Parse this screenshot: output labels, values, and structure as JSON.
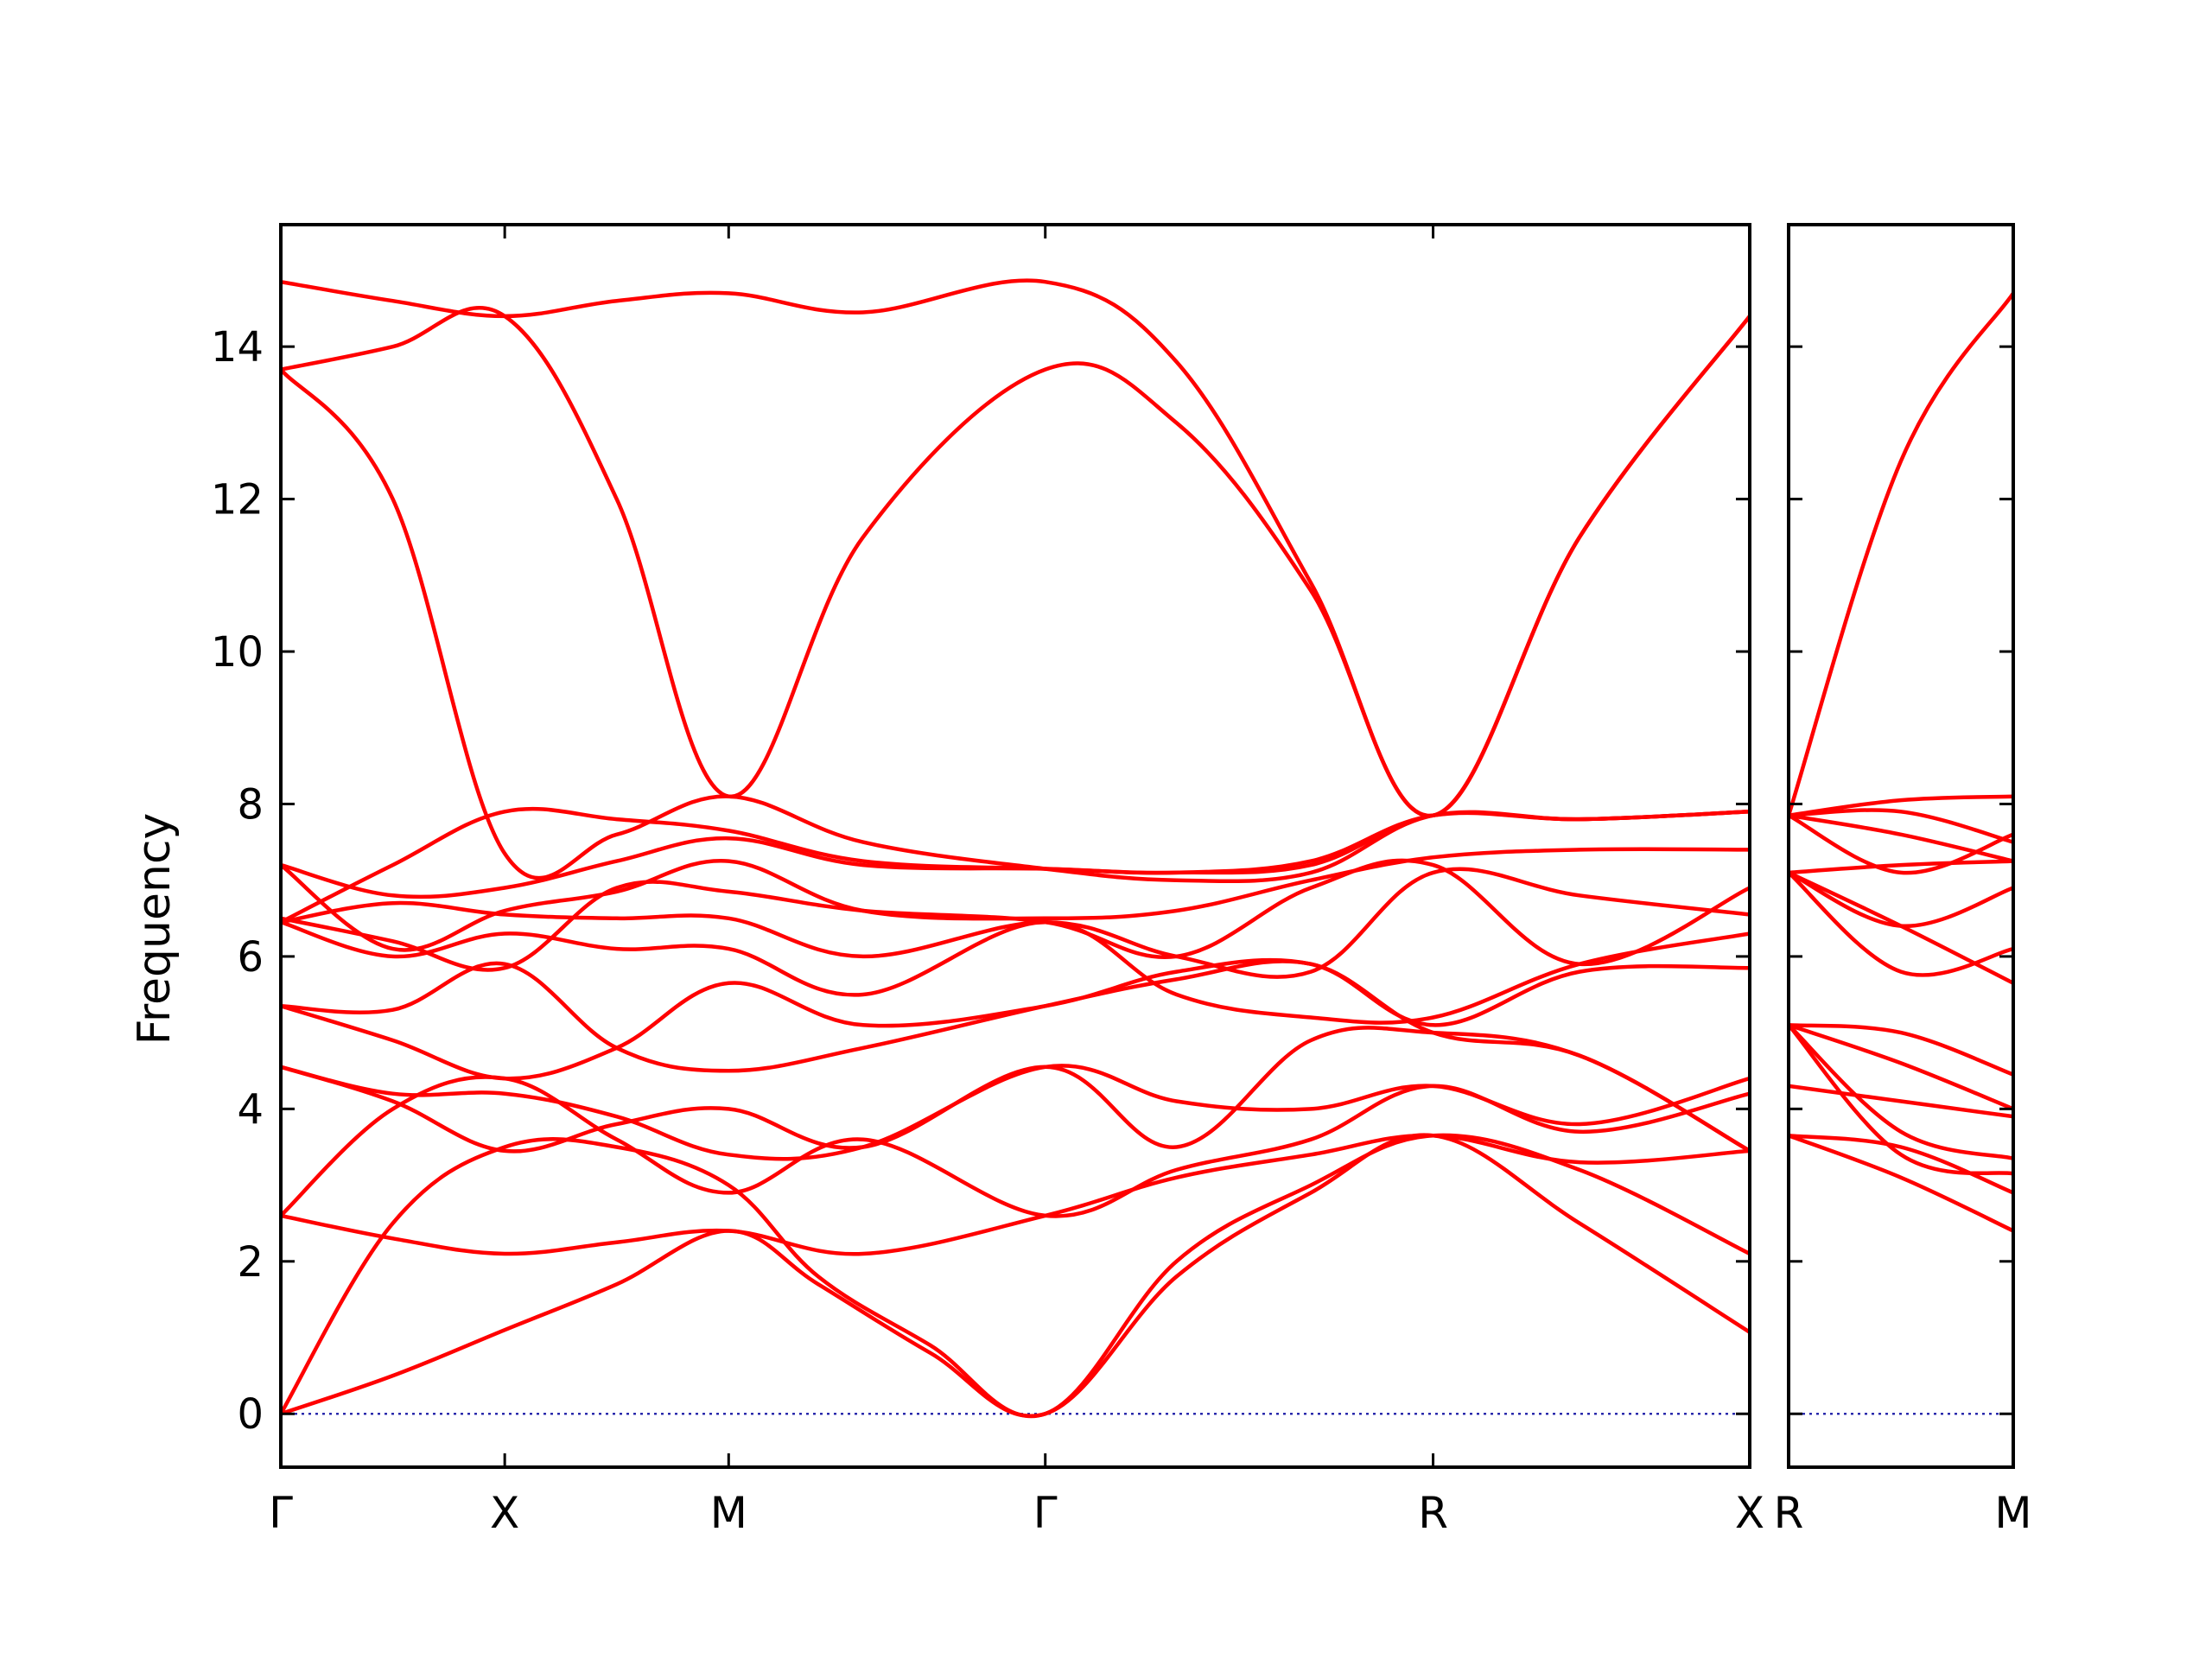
{
  "chart_data": {
    "type": "line",
    "title": "",
    "xlabel": "",
    "ylabel": "Frequency",
    "ylim": [
      -0.7,
      15.6
    ],
    "yticks": [
      0,
      2,
      4,
      6,
      8,
      10,
      12,
      14
    ],
    "grid": false,
    "colors": {
      "band": "#ff0000",
      "zero_line": "#1a1aa6",
      "axes": "#000000"
    },
    "panels": [
      {
        "name": "panel-1",
        "xticks": [
          {
            "label": "Γ",
            "x": 0
          },
          {
            "label": "X",
            "x": 0.5
          },
          {
            "label": "M",
            "x": 1.0
          },
          {
            "label": "Γ",
            "x": 1.707
          },
          {
            "label": "R",
            "x": 2.573
          },
          {
            "label": "X",
            "x": 3.28
          }
        ],
        "series": [
          {
            "x": [
              0,
              0.25,
              0.5,
              0.75,
              1.0,
              1.2,
              1.45,
              1.707,
              2.0,
              2.3,
              2.573,
              2.9,
              3.28
            ],
            "values": [
              0,
              0.5,
              1.1,
              1.7,
              2.4,
              1.7,
              0.8,
              0,
              1.8,
              2.9,
              3.65,
              2.5,
              1.07
            ]
          },
          {
            "x": [
              0,
              0.25,
              0.5,
              0.75,
              1.0,
              1.2,
              1.45,
              1.707,
              2.0,
              2.3,
              2.573,
              2.9,
              3.28
            ],
            "values": [
              0,
              2.5,
              3.5,
              3.5,
              3.0,
              1.8,
              0.9,
              0,
              2.0,
              3.0,
              3.65,
              3.2,
              2.1
            ]
          },
          {
            "x": [
              0,
              0.25,
              0.5,
              0.75,
              1.0,
              1.3,
              1.707,
              2.0,
              2.3,
              2.573,
              2.9,
              3.28
            ],
            "values": [
              2.6,
              2.3,
              2.1,
              2.25,
              2.4,
              2.1,
              2.6,
              3.1,
              3.4,
              3.65,
              3.3,
              3.45
            ]
          },
          {
            "x": [
              0,
              0.25,
              0.5,
              0.75,
              1.0,
              1.3,
              1.707,
              2.0,
              2.3,
              2.573,
              2.9,
              3.28
            ],
            "values": [
              2.6,
              4.0,
              4.4,
              3.6,
              2.9,
              3.6,
              2.6,
              3.2,
              3.6,
              4.3,
              3.7,
              4.2
            ]
          },
          {
            "x": [
              0,
              0.25,
              0.5,
              0.75,
              1.0,
              1.3,
              1.707,
              2.0,
              2.3,
              2.573,
              2.9,
              3.28
            ],
            "values": [
              4.55,
              4.2,
              4.2,
              3.9,
              3.4,
              3.5,
              4.55,
              4.1,
              4.0,
              4.3,
              3.8,
              4.4
            ]
          },
          {
            "x": [
              0,
              0.25,
              0.5,
              0.75,
              1.0,
              1.3,
              1.707,
              2.0,
              2.3,
              2.573,
              2.9,
              3.28
            ],
            "values": [
              4.55,
              4.1,
              3.45,
              3.8,
              4.0,
              3.5,
              4.55,
              3.5,
              4.9,
              5.0,
              4.7,
              3.45
            ]
          },
          {
            "x": [
              0,
              0.25,
              0.5,
              0.75,
              1.0,
              1.3,
              1.707,
              2.0,
              2.3,
              2.573,
              2.9,
              3.28
            ],
            "values": [
              5.35,
              5.3,
              5.9,
              4.8,
              4.5,
              4.8,
              5.35,
              5.7,
              5.9,
              5.0,
              4.7,
              3.45
            ]
          },
          {
            "x": [
              0,
              0.25,
              0.5,
              0.75,
              1.0,
              1.3,
              1.707,
              2.0,
              2.3,
              2.573,
              2.9,
              3.28
            ],
            "values": [
              5.35,
              4.9,
              4.4,
              4.8,
              5.65,
              5.1,
              5.35,
              5.8,
              5.9,
              5.1,
              5.8,
              5.85
            ]
          },
          {
            "x": [
              0,
              0.25,
              0.5,
              0.75,
              1.0,
              1.3,
              1.707,
              2.0,
              2.3,
              2.573,
              2.9,
              3.28
            ],
            "values": [
              6.45,
              6.0,
              6.3,
              6.1,
              6.1,
              5.5,
              6.45,
              5.5,
              5.2,
              5.2,
              5.9,
              6.3
            ]
          },
          {
            "x": [
              0,
              0.25,
              0.5,
              0.75,
              1.0,
              1.3,
              1.707,
              2.0,
              2.3,
              2.573,
              2.9,
              3.28
            ],
            "values": [
              6.45,
              6.7,
              6.55,
              6.5,
              6.5,
              6.0,
              6.45,
              6.0,
              5.8,
              7.1,
              6.8,
              6.55
            ]
          },
          {
            "x": [
              0,
              0.25,
              0.5,
              0.75,
              1.0,
              1.3,
              1.707,
              2.0,
              2.3,
              2.573,
              2.9,
              3.28
            ],
            "values": [
              6.5,
              6.2,
              5.85,
              6.9,
              6.85,
              6.6,
              6.45,
              6.0,
              6.9,
              7.2,
              5.9,
              6.9
            ]
          },
          {
            "x": [
              0,
              0.25,
              0.5,
              0.75,
              1.0,
              1.3,
              1.707,
              2.0,
              2.3,
              2.573,
              2.9,
              3.28
            ],
            "values": [
              7.2,
              6.1,
              6.6,
              6.85,
              7.25,
              6.6,
              6.5,
              6.6,
              7.0,
              7.3,
              7.4,
              7.4
            ]
          },
          {
            "x": [
              0,
              0.25,
              0.5,
              0.75,
              1.0,
              1.3,
              1.707,
              2.0,
              2.3,
              2.573,
              2.9,
              3.28
            ],
            "values": [
              7.2,
              6.8,
              6.9,
              7.25,
              7.55,
              7.2,
              7.15,
              7.1,
              7.25,
              7.85,
              7.8,
              7.9
            ]
          },
          {
            "x": [
              0,
              0.25,
              0.5,
              0.75,
              1.0,
              1.3,
              1.707,
              2.0,
              2.3,
              2.573,
              2.9,
              3.28
            ],
            "values": [
              6.45,
              7.2,
              7.9,
              7.8,
              7.65,
              7.25,
              7.15,
              7.1,
              7.2,
              7.85,
              7.8,
              7.9
            ]
          },
          {
            "x": [
              0,
              0.25,
              0.5,
              0.75,
              1.0,
              1.3,
              1.707,
              2.0,
              2.3,
              2.573,
              2.9,
              3.28
            ],
            "values": [
              13.7,
              12.0,
              7.35,
              7.6,
              8.1,
              7.5,
              7.15,
              7.0,
              7.1,
              7.85,
              7.8,
              7.9
            ]
          },
          {
            "x": [
              0,
              0.25,
              0.5,
              0.75,
              1.0,
              1.3,
              1.707,
              2.0,
              2.3,
              2.573,
              2.9,
              3.28
            ],
            "values": [
              13.7,
              14.0,
              14.4,
              12.0,
              8.1,
              11.5,
              13.7,
              13.0,
              10.8,
              7.85,
              11.5,
              14.4
            ]
          },
          {
            "x": [
              0,
              0.25,
              0.5,
              0.75,
              1.0,
              1.3,
              1.707,
              2.0,
              2.3,
              2.573,
              2.9,
              3.28
            ],
            "values": [
              14.85,
              14.6,
              14.4,
              14.6,
              14.7,
              14.45,
              14.85,
              13.8,
              10.9,
              7.85,
              11.5,
              14.4
            ]
          }
        ]
      },
      {
        "name": "panel-2",
        "xticks": [
          {
            "label": "R",
            "x": 0
          },
          {
            "label": "M",
            "x": 0.5
          }
        ],
        "series": [
          {
            "x": [
              0,
              0.25,
              0.5
            ],
            "values": [
              3.65,
              3.1,
              2.4
            ]
          },
          {
            "x": [
              0,
              0.25,
              0.5
            ],
            "values": [
              3.65,
              3.5,
              2.9
            ]
          },
          {
            "x": [
              0,
              0.25,
              0.5
            ],
            "values": [
              4.3,
              4.1,
              3.9
            ]
          },
          {
            "x": [
              0,
              0.25,
              0.5
            ],
            "values": [
              5.1,
              3.4,
              3.15
            ]
          },
          {
            "x": [
              0,
              0.25,
              0.5
            ],
            "values": [
              5.1,
              3.7,
              3.35
            ]
          },
          {
            "x": [
              0,
              0.25,
              0.5
            ],
            "values": [
              5.1,
              4.6,
              4.0
            ]
          },
          {
            "x": [
              0,
              0.25,
              0.5
            ],
            "values": [
              5.1,
              5.0,
              4.45
            ]
          },
          {
            "x": [
              0,
              0.25,
              0.5
            ],
            "values": [
              7.1,
              5.8,
              6.1
            ]
          },
          {
            "x": [
              0,
              0.25,
              0.5
            ],
            "values": [
              7.1,
              6.4,
              5.65
            ]
          },
          {
            "x": [
              0,
              0.25,
              0.5
            ],
            "values": [
              7.1,
              6.4,
              6.9
            ]
          },
          {
            "x": [
              0,
              0.25,
              0.5
            ],
            "values": [
              7.1,
              7.2,
              7.25
            ]
          },
          {
            "x": [
              0,
              0.25,
              0.5
            ],
            "values": [
              7.85,
              7.1,
              7.6
            ]
          },
          {
            "x": [
              0,
              0.25,
              0.5
            ],
            "values": [
              7.85,
              7.6,
              7.25
            ]
          },
          {
            "x": [
              0,
              0.25,
              0.5
            ],
            "values": [
              7.85,
              7.9,
              7.5
            ]
          },
          {
            "x": [
              0,
              0.25,
              0.5
            ],
            "values": [
              7.85,
              8.05,
              8.1
            ]
          },
          {
            "x": [
              0,
              0.25,
              0.5
            ],
            "values": [
              7.85,
              12.5,
              14.7
            ]
          }
        ]
      }
    ]
  }
}
